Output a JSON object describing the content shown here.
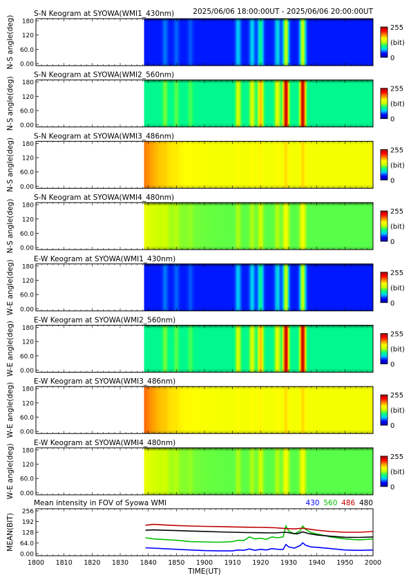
{
  "header": {
    "date_range": "2025/06/06 18:00:00UT - 2025/06/06 20:00:00UT"
  },
  "colorbar": {
    "max_label": "255",
    "unit_label": "(bit)",
    "min_label": "0"
  },
  "colormap_stops": [
    "#0000a0",
    "#0000ff",
    "#00c8ff",
    "#00ff80",
    "#c8ff00",
    "#ffff00",
    "#ff8000",
    "#ff0000",
    "#a00000"
  ],
  "chart_data": {
    "type": "heatmap",
    "xlabel": "TIME(UT)",
    "x_tick_labels": [
      "1800",
      "1810",
      "1820",
      "1830",
      "1840",
      "1850",
      "1900",
      "1910",
      "1920",
      "1930",
      "1940",
      "1950",
      "2000"
    ],
    "x_range_minutes": [
      0,
      120
    ],
    "data_start_minute": 38.5,
    "y_tick_labels": [
      "180",
      "120",
      "60.0",
      "0.00"
    ],
    "y_range_deg": [
      0,
      180
    ],
    "panels": [
      {
        "title": "S-N Keogram at SYOWA(WMI1_430nm)",
        "ylabel": "N-S angle(deg)",
        "base_level": 0.14,
        "early_boost": 0.0,
        "band_gain": 0.42,
        "top_dark": true
      },
      {
        "title": "S-N Keogram at SYOWA(WMI2_560nm)",
        "ylabel": "N-S angle(deg)",
        "base_level": 0.36,
        "early_boost": 0.0,
        "band_gain": 0.62,
        "top_dark": true
      },
      {
        "title": "S-N Keogram at SYOWA(WMI3_486nm)",
        "ylabel": "N-S angle(deg)",
        "base_level": 0.6,
        "early_boost": 0.16,
        "band_gain": 0.06,
        "top_dark": false
      },
      {
        "title": "S-N Keogram at SYOWA(WMI4_480nm)",
        "ylabel": "N-S angle(deg)",
        "base_level": 0.43,
        "early_boost": 0.16,
        "band_gain": 0.18,
        "top_dark": true
      },
      {
        "title": "E-W Keogram at SYOWA(WMI1_430nm)",
        "ylabel": "W-E angle(deg)",
        "base_level": 0.14,
        "early_boost": 0.0,
        "band_gain": 0.42,
        "top_dark": true
      },
      {
        "title": "E-W Keogram at SYOWA(WMI2_560nm)",
        "ylabel": "W-E angle(deg)",
        "base_level": 0.36,
        "early_boost": 0.0,
        "band_gain": 0.62,
        "top_dark": true
      },
      {
        "title": "E-W Keogram at SYOWA(WMI3_486nm)",
        "ylabel": "W-E angle(deg)",
        "base_level": 0.6,
        "early_boost": 0.18,
        "band_gain": 0.06,
        "top_dark": false
      },
      {
        "title": "E-W Keogram at SYOWA(WMI4_480nm)",
        "ylabel": "W-E angle(deg)",
        "base_level": 0.43,
        "early_boost": 0.16,
        "band_gain": 0.18,
        "top_dark": true
      }
    ],
    "auroral_bands_minutes": [
      {
        "t": 46,
        "strength": 0.15
      },
      {
        "t": 50,
        "strength": 0.12
      },
      {
        "t": 55,
        "strength": 0.1
      },
      {
        "t": 72,
        "strength": 0.3
      },
      {
        "t": 77,
        "strength": 0.32
      },
      {
        "t": 80,
        "strength": 0.55
      },
      {
        "t": 86,
        "strength": 0.35
      },
      {
        "t": 89,
        "strength": 1.0
      },
      {
        "t": 95,
        "strength": 1.0
      }
    ],
    "mean_panel": {
      "title": "Mean intensity in FOV of Syowa WMI",
      "ylabel": "MEAN(BIT)",
      "y_tick_labels": [
        "256",
        "192",
        "128",
        "64.0",
        "0.00"
      ],
      "ylim": [
        0,
        256
      ],
      "series": [
        {
          "name": "430",
          "color": "#0000ff",
          "points": [
            [
              39,
              35
            ],
            [
              45,
              30
            ],
            [
              50,
              26
            ],
            [
              55,
              22
            ],
            [
              60,
              18
            ],
            [
              65,
              17
            ],
            [
              70,
              17
            ],
            [
              72,
              22
            ],
            [
              74,
              20
            ],
            [
              76,
              28
            ],
            [
              78,
              20
            ],
            [
              80,
              26
            ],
            [
              82,
              22
            ],
            [
              84,
              30
            ],
            [
              86,
              26
            ],
            [
              88,
              25
            ],
            [
              89,
              55
            ],
            [
              90,
              40
            ],
            [
              92,
              33
            ],
            [
              94,
              48
            ],
            [
              95,
              65
            ],
            [
              96,
              50
            ],
            [
              98,
              40
            ],
            [
              100,
              38
            ],
            [
              105,
              30
            ],
            [
              110,
              22
            ],
            [
              115,
              20
            ],
            [
              120,
              22
            ]
          ]
        },
        {
          "name": "560",
          "color": "#00c000",
          "points": [
            [
              39,
              95
            ],
            [
              42,
              88
            ],
            [
              45,
              85
            ],
            [
              50,
              80
            ],
            [
              55,
              72
            ],
            [
              60,
              70
            ],
            [
              65,
              68
            ],
            [
              70,
              72
            ],
            [
              72,
              80
            ],
            [
              74,
              78
            ],
            [
              76,
              100
            ],
            [
              78,
              88
            ],
            [
              80,
              92
            ],
            [
              82,
              85
            ],
            [
              84,
              100
            ],
            [
              86,
              95
            ],
            [
              88,
              100
            ],
            [
              89,
              165
            ],
            [
              90,
              135
            ],
            [
              92,
              118
            ],
            [
              94,
              135
            ],
            [
              95,
              165
            ],
            [
              96,
              145
            ],
            [
              98,
              125
            ],
            [
              100,
              118
            ],
            [
              105,
              100
            ],
            [
              110,
              88
            ],
            [
              115,
              82
            ],
            [
              120,
              88
            ]
          ]
        },
        {
          "name": "486",
          "color": "#c00000",
          "points": [
            [
              39,
              170
            ],
            [
              42,
              175
            ],
            [
              45,
              172
            ],
            [
              50,
              168
            ],
            [
              55,
              165
            ],
            [
              60,
              163
            ],
            [
              65,
              162
            ],
            [
              70,
              160
            ],
            [
              75,
              158
            ],
            [
              80,
              157
            ],
            [
              85,
              155
            ],
            [
              89,
              150
            ],
            [
              92,
              148
            ],
            [
              95,
              152
            ],
            [
              98,
              145
            ],
            [
              100,
              140
            ],
            [
              105,
              132
            ],
            [
              110,
              128
            ],
            [
              115,
              128
            ],
            [
              120,
              132
            ]
          ]
        },
        {
          "name": "480",
          "color": "#000000",
          "points": [
            [
              39,
              140
            ],
            [
              42,
              142
            ],
            [
              45,
              140
            ],
            [
              50,
              138
            ],
            [
              55,
              135
            ],
            [
              60,
              133
            ],
            [
              65,
              130
            ],
            [
              70,
              128
            ],
            [
              75,
              126
            ],
            [
              80,
              125
            ],
            [
              85,
              124
            ],
            [
              89,
              128
            ],
            [
              91,
              122
            ],
            [
              93,
              118
            ],
            [
              95,
              130
            ],
            [
              97,
              120
            ],
            [
              100,
              112
            ],
            [
              105,
              104
            ],
            [
              110,
              98
            ],
            [
              115,
              97
            ],
            [
              120,
              100
            ]
          ]
        }
      ]
    }
  }
}
